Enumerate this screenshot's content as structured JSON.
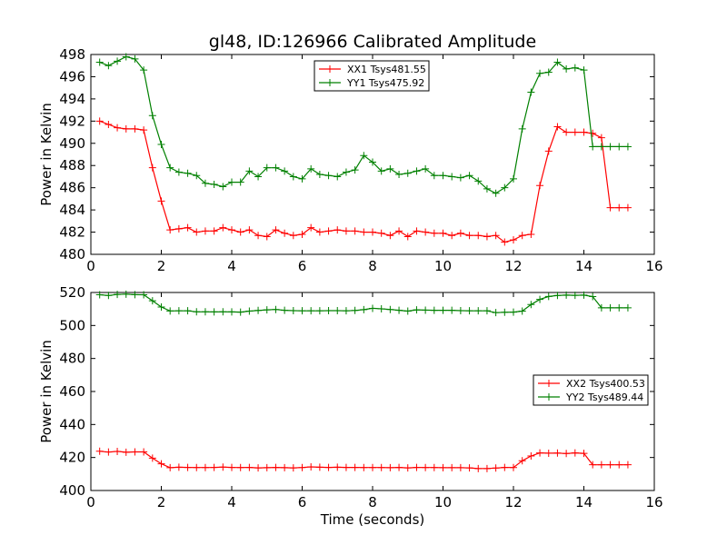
{
  "colors": {
    "xx": "#ff0000",
    "yy": "#008000"
  },
  "chart_data": [
    {
      "type": "line",
      "title": "gl48, ID:126966 Calibrated Amplitude",
      "xlabel": "",
      "ylabel": "Power in Kelvin",
      "xlim": [
        0,
        16
      ],
      "ylim": [
        480,
        498
      ],
      "xticks": [
        "0",
        "2",
        "4",
        "6",
        "8",
        "10",
        "12",
        "14",
        "16"
      ],
      "yticks": [
        "480",
        "482",
        "484",
        "486",
        "488",
        "490",
        "492",
        "494",
        "496",
        "498"
      ],
      "legend": "top-center",
      "x": [
        0.25,
        0.5,
        0.75,
        1.0,
        1.25,
        1.5,
        1.75,
        2.0,
        2.25,
        2.5,
        2.75,
        3.0,
        3.25,
        3.5,
        3.75,
        4.0,
        4.25,
        4.5,
        4.75,
        5.0,
        5.25,
        5.5,
        5.75,
        6.0,
        6.25,
        6.5,
        6.75,
        7.0,
        7.25,
        7.5,
        7.75,
        8.0,
        8.25,
        8.5,
        8.75,
        9.0,
        9.25,
        9.5,
        9.75,
        10.0,
        10.25,
        10.5,
        10.75,
        11.0,
        11.25,
        11.5,
        11.75,
        12.0,
        12.25,
        12.5,
        12.75,
        13.0,
        13.25,
        13.5,
        13.75,
        14.0,
        14.25,
        14.5,
        14.75,
        15.0,
        15.25
      ],
      "series": [
        {
          "name": "XX1 Tsys481.55",
          "color": "#ff0000",
          "values": [
            492.0,
            491.7,
            491.4,
            491.3,
            491.3,
            491.2,
            487.8,
            484.8,
            482.2,
            482.3,
            482.4,
            482.0,
            482.1,
            482.1,
            482.4,
            482.2,
            482.0,
            482.2,
            481.7,
            481.6,
            482.2,
            481.9,
            481.7,
            481.8,
            482.4,
            482.0,
            482.1,
            482.2,
            482.1,
            482.1,
            482.0,
            482.0,
            481.9,
            481.7,
            482.1,
            481.6,
            482.1,
            482.0,
            481.9,
            481.9,
            481.7,
            481.9,
            481.7,
            481.7,
            481.6,
            481.7,
            481.1,
            481.3,
            481.7,
            481.8,
            486.2,
            489.3,
            491.5,
            491.0,
            491.0,
            491.0,
            490.9,
            490.5,
            484.2,
            484.2,
            484.2
          ]
        },
        {
          "name": "YY1 Tsys475.92",
          "color": "#008000",
          "values": [
            497.3,
            497.0,
            497.4,
            497.8,
            497.6,
            496.6,
            492.5,
            489.9,
            487.8,
            487.4,
            487.3,
            487.1,
            486.4,
            486.3,
            486.1,
            486.5,
            486.5,
            487.5,
            487.0,
            487.8,
            487.8,
            487.5,
            487.0,
            486.8,
            487.7,
            487.2,
            487.1,
            487.0,
            487.4,
            487.6,
            488.9,
            488.3,
            487.5,
            487.7,
            487.2,
            487.3,
            487.5,
            487.7,
            487.1,
            487.1,
            487.0,
            486.9,
            487.1,
            486.6,
            485.9,
            485.5,
            486.0,
            486.8,
            491.3,
            494.6,
            496.3,
            496.4,
            497.3,
            496.7,
            496.8,
            496.6,
            489.7,
            489.7,
            489.7,
            489.7,
            489.7
          ]
        }
      ]
    },
    {
      "type": "line",
      "title": "",
      "xlabel": "Time (seconds)",
      "ylabel": "Power in Kelvin",
      "xlim": [
        0,
        16
      ],
      "ylim": [
        400,
        520
      ],
      "xticks": [
        "0",
        "2",
        "4",
        "6",
        "8",
        "10",
        "12",
        "14",
        "16"
      ],
      "yticks": [
        "400",
        "420",
        "440",
        "460",
        "480",
        "500",
        "520"
      ],
      "legend": "center-right",
      "x": [
        0.25,
        0.5,
        0.75,
        1.0,
        1.25,
        1.5,
        1.75,
        2.0,
        2.25,
        2.5,
        2.75,
        3.0,
        3.25,
        3.5,
        3.75,
        4.0,
        4.25,
        4.5,
        4.75,
        5.0,
        5.25,
        5.5,
        5.75,
        6.0,
        6.25,
        6.5,
        6.75,
        7.0,
        7.25,
        7.5,
        7.75,
        8.0,
        8.25,
        8.5,
        8.75,
        9.0,
        9.25,
        9.5,
        9.75,
        10.0,
        10.25,
        10.5,
        10.75,
        11.0,
        11.25,
        11.5,
        11.75,
        12.0,
        12.25,
        12.5,
        12.75,
        13.0,
        13.25,
        13.5,
        13.75,
        14.0,
        14.25,
        14.5,
        14.75,
        15.0,
        15.25
      ],
      "series": [
        {
          "name": "XX2 Tsys400.53",
          "color": "#ff0000",
          "values": [
            423.8,
            423.3,
            423.7,
            423.2,
            423.4,
            423.4,
            419.6,
            416.2,
            413.8,
            414.1,
            414.0,
            413.9,
            413.9,
            414.0,
            414.2,
            414.0,
            413.9,
            414.0,
            413.7,
            413.8,
            414.0,
            413.8,
            413.7,
            413.9,
            414.3,
            414.1,
            414.0,
            414.1,
            414.0,
            414.0,
            413.9,
            413.9,
            413.9,
            413.8,
            414.0,
            413.7,
            414.0,
            413.9,
            413.9,
            413.8,
            413.8,
            413.8,
            413.7,
            413.3,
            413.3,
            413.6,
            414.0,
            413.9,
            418.0,
            420.9,
            422.8,
            422.6,
            422.7,
            422.4,
            422.8,
            422.5,
            415.6,
            415.6,
            415.6,
            415.6,
            415.6
          ]
        },
        {
          "name": "YY2 Tsys489.44",
          "color": "#008000",
          "values": [
            518.6,
            518.2,
            518.8,
            519.0,
            518.7,
            518.6,
            515.0,
            511.2,
            508.8,
            508.9,
            508.9,
            508.3,
            508.3,
            508.2,
            508.3,
            508.2,
            508.1,
            508.7,
            509.1,
            509.5,
            509.7,
            509.2,
            509.0,
            508.9,
            508.9,
            508.9,
            509.0,
            509.0,
            508.9,
            509.1,
            509.6,
            510.4,
            510.1,
            509.7,
            509.2,
            508.7,
            509.5,
            509.3,
            509.2,
            509.2,
            509.2,
            509.0,
            508.9,
            508.9,
            508.9,
            507.8,
            508.0,
            508.1,
            508.7,
            512.7,
            515.8,
            517.6,
            518.2,
            518.4,
            518.3,
            518.4,
            517.5,
            510.7,
            510.7,
            510.7,
            510.7
          ]
        }
      ]
    }
  ]
}
